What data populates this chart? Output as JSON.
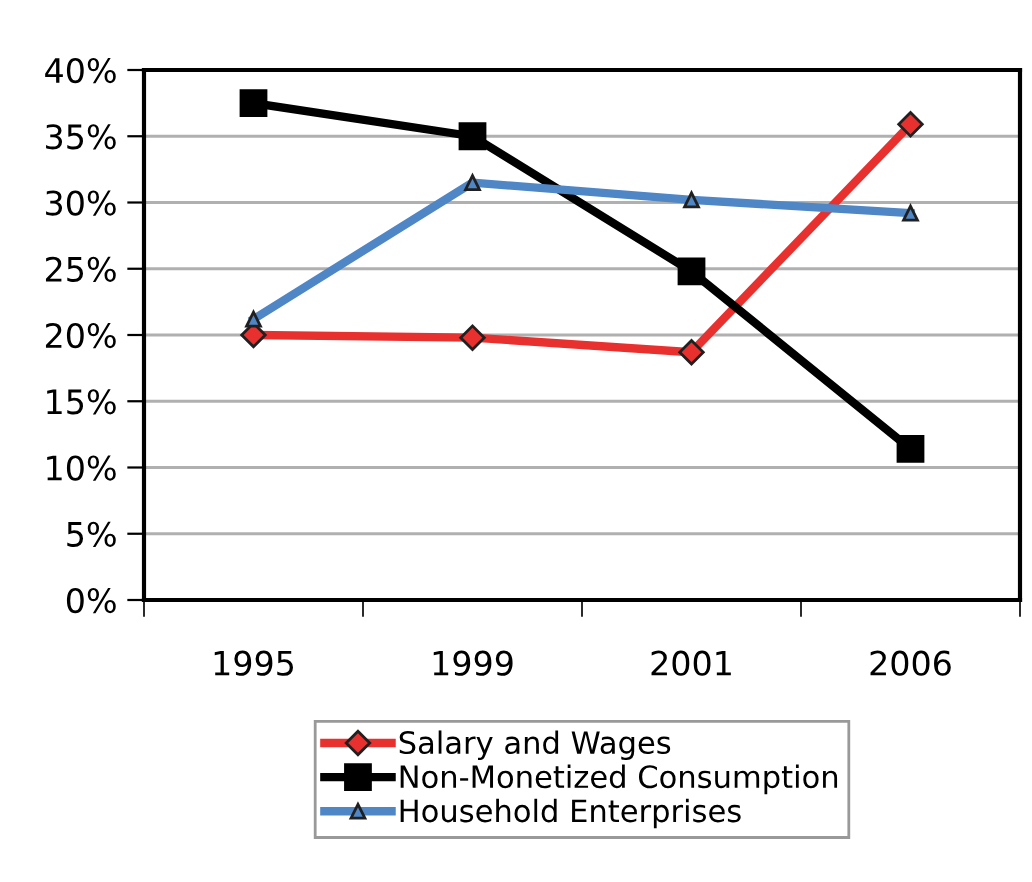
{
  "chart_data": {
    "type": "line",
    "categories": [
      "1995",
      "1999",
      "2001",
      "2006"
    ],
    "series": [
      {
        "name": "Salary and Wages",
        "color": "#e8312f",
        "marker": "diamond",
        "values": [
          20.0,
          19.8,
          18.7,
          35.9
        ]
      },
      {
        "name": "Non-Monetized Consumption",
        "color": "#000000",
        "marker": "square",
        "values": [
          37.5,
          35.0,
          24.8,
          11.4
        ]
      },
      {
        "name": "Household Enterprises",
        "color": "#4f86c6",
        "marker": "triangle",
        "values": [
          21.2,
          31.5,
          30.2,
          29.2
        ]
      }
    ],
    "ylim": [
      0,
      40
    ],
    "yticks": [
      {
        "value": 0,
        "label": "0%"
      },
      {
        "value": 5,
        "label": "5%"
      },
      {
        "value": 10,
        "label": "10%"
      },
      {
        "value": 15,
        "label": "15%"
      },
      {
        "value": 20,
        "label": "20%"
      },
      {
        "value": 25,
        "label": "25%"
      },
      {
        "value": 30,
        "label": "30%"
      },
      {
        "value": 35,
        "label": "35%"
      },
      {
        "value": 40,
        "label": "40%"
      }
    ],
    "grid": "y",
    "legend": "bottom",
    "line_style": "solid"
  }
}
